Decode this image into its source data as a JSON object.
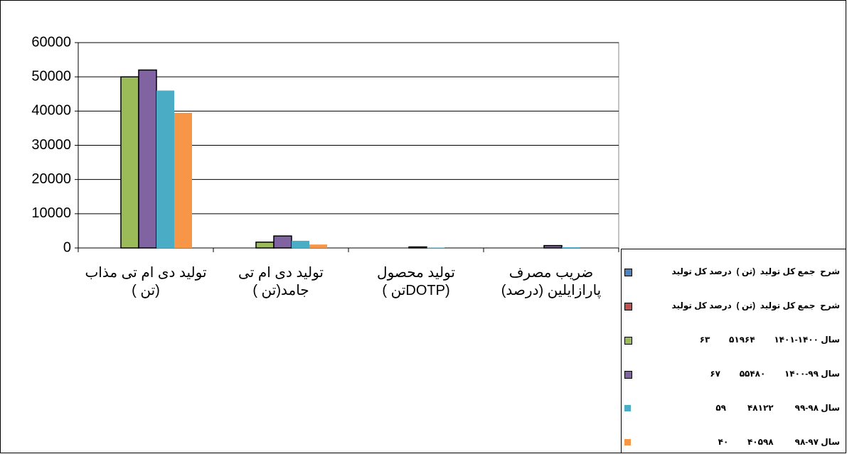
{
  "chart_data": {
    "type": "bar",
    "categories": [
      "تولید دی ام تی مذاب (تن )",
      "تولید دی ام تی جامد(تن )",
      "تولید محصول (DOTPتن )",
      "ضریب مصرف پارازایلین (درصد)"
    ],
    "series": [
      {
        "name": "شرح  جمع کل تولید  (تن )  درصد کل تولید",
        "color": "#4f81bd",
        "outline": true,
        "values": [
          null,
          null,
          null,
          null
        ]
      },
      {
        "name": "شرح  جمع کل تولید  (تن )  درصد کل تولید",
        "color": "#c0504d",
        "outline": true,
        "values": [
          null,
          null,
          null,
          null
        ]
      },
      {
        "name": "سال ۱۴۰۰-۱۴۰۱        ۵۱۹۶۴        ۶۳",
        "color": "#9bbb59",
        "outline": true,
        "values": [
          50000,
          1700,
          0,
          0
        ]
      },
      {
        "name": "سال ۹۹-۱۴۰۰        ۵۵۴۸۰        ۶۷",
        "color": "#8064a2",
        "outline": true,
        "values": [
          52000,
          3500,
          300,
          700
        ]
      },
      {
        "name": "سال ۹۸-۹۹         ۴۸۱۲۲         ۵۹",
        "color": "#4bacc6",
        "outline": false,
        "values": [
          46000,
          2100,
          100,
          200
        ]
      },
      {
        "name": "سال ۹۷-۹۸         ۴۰۵۹۸        ۴۰",
        "color": "#f79646",
        "outline": false,
        "values": [
          39500,
          1000,
          0,
          0
        ]
      }
    ],
    "ylim": [
      0,
      60000
    ],
    "yticks": [
      0,
      10000,
      20000,
      30000,
      40000,
      50000,
      60000
    ],
    "grid": true,
    "legend": "bottom-right"
  }
}
